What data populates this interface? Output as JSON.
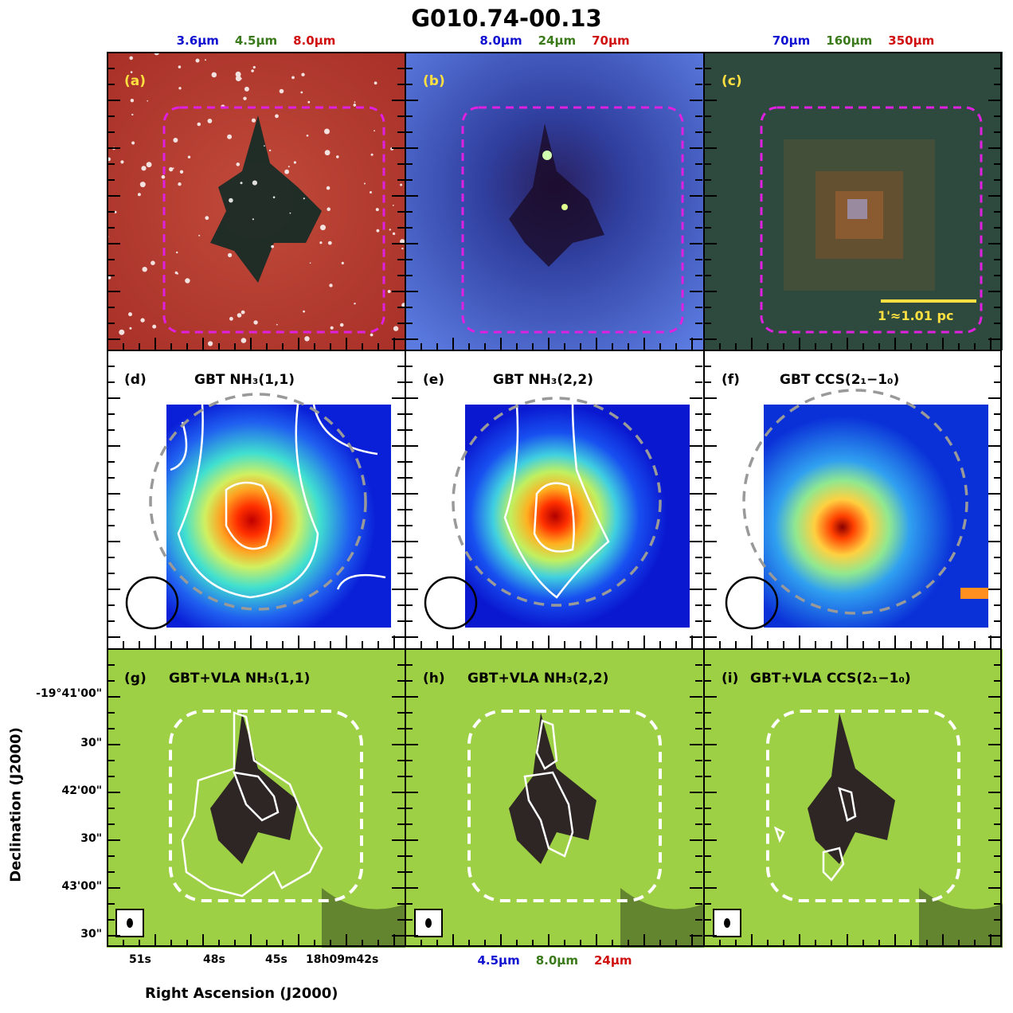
{
  "figure": {
    "title": "G010.74-00.13",
    "top_wavelengths": [
      {
        "blue": "3.6µm",
        "green": "4.5µm",
        "red": "8.0µm"
      },
      {
        "blue": "8.0µm",
        "green": "24µm",
        "red": "70µm"
      },
      {
        "blue": "70µm",
        "green": "160µm",
        "red": "350µm"
      }
    ],
    "bottom_wavelengths": {
      "blue": "4.5µm",
      "green": "8.0µm",
      "red": "24µm"
    },
    "scalebar_label": "1'≈1.01 pc",
    "panels": {
      "a": {
        "tag": "(a)"
      },
      "b": {
        "tag": "(b)"
      },
      "c": {
        "tag": "(c)"
      },
      "d": {
        "tag": "(d)",
        "title": "GBT NH₃(1,1)"
      },
      "e": {
        "tag": "(e)",
        "title": "GBT NH₃(2,2)"
      },
      "f": {
        "tag": "(f)",
        "title": "GBT CCS(2₁−1₀)"
      },
      "g": {
        "tag": "(g)",
        "title": "GBT+VLA NH₃(1,1)"
      },
      "h": {
        "tag": "(h)",
        "title": "GBT+VLA NH₃(2,2)"
      },
      "i": {
        "tag": "(i)",
        "title": "GBT+VLA CCS(2₁−1₀)"
      }
    },
    "axes": {
      "ylabel": "Declination (J2000)",
      "xlabel": "Right Ascension (J2000)",
      "dec_ticks": [
        "-19°41'00\"",
        "30\"",
        "42'00\"",
        "30\"",
        "43'00\"",
        "30\""
      ],
      "ra_ticks": [
        "51s",
        "48s",
        "45s",
        "18h09m42s"
      ]
    }
  }
}
